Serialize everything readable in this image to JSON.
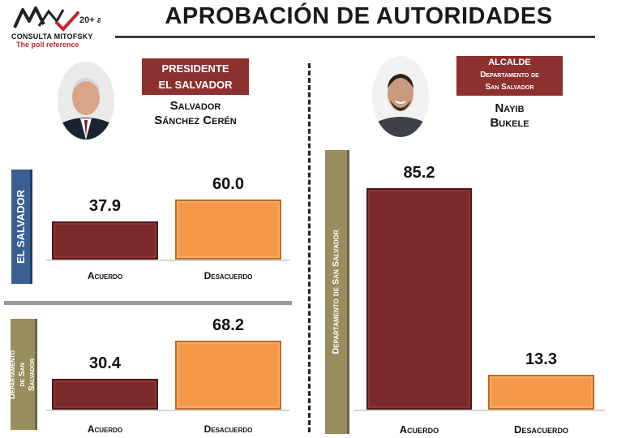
{
  "header": {
    "brand_name": "CONSULTA MITOFSKY",
    "brand_tagline": "The poll reference",
    "logo_badge": "20+ años",
    "title": "APROBACIÓN DE AUTORIDADES"
  },
  "left_official": {
    "role_line1": "PRESIDENTE",
    "role_line2": "EL SALVADOR",
    "name_line1": "Salvador",
    "name_line2": "Sánchez Cerén"
  },
  "right_official": {
    "role_line1": "ALCALDE",
    "role_line2": "Departamento de",
    "role_line3": "San Salvador",
    "name_line1": "Nayib",
    "name_line2": "Bukele"
  },
  "colors": {
    "agree": "#7a2a2a",
    "disagree": "#f4994a",
    "label_blue": "#3a5f94",
    "label_olive": "#9a8d5e",
    "role_box": "#8c3030"
  },
  "chart_data": [
    {
      "type": "bar",
      "panel_label": "EL SALVADOR",
      "categories": [
        "Acuerdo",
        "Desacuerdo"
      ],
      "values": [
        37.9,
        60.0
      ],
      "value_labels": [
        "37.9",
        "60.0"
      ],
      "ylim": [
        0,
        100
      ]
    },
    {
      "type": "bar",
      "panel_label": "Departamento de San Salvador",
      "categories": [
        "Acuerdo",
        "Desacuerdo"
      ],
      "values": [
        30.4,
        68.2
      ],
      "value_labels": [
        "30.4",
        "68.2"
      ],
      "ylim": [
        0,
        100
      ]
    },
    {
      "type": "bar",
      "panel_label": "Departamento de San Salvador",
      "categories": [
        "Acuerdo",
        "Desacuerdo"
      ],
      "values": [
        85.2,
        13.3
      ],
      "value_labels": [
        "85.2",
        "13.3"
      ],
      "ylim": [
        0,
        100
      ]
    }
  ]
}
